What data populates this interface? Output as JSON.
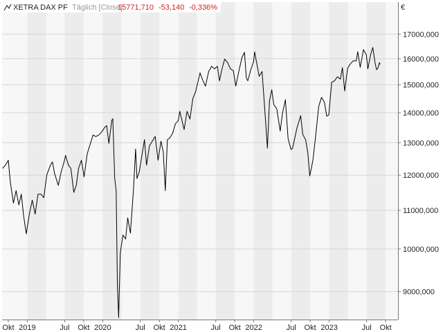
{
  "header": {
    "instrument": "XETRA DAX PF",
    "period": "Täglich [Close]",
    "last": "15771,710",
    "change": "-53,140",
    "change_pct": "-0,336%",
    "currency": "€"
  },
  "colors": {
    "line": "#000000",
    "negative": "#cc2222",
    "band_dark": "#ececec",
    "band_light": "#f7f7f7",
    "grid": "#d6d6d6",
    "axis": "#777777"
  },
  "chart_data": {
    "type": "line",
    "title": "",
    "xlabel": "",
    "ylabel": "",
    "y_scale": "log",
    "ylim": [
      8400,
      18400
    ],
    "xlim": [
      "2018-09-01",
      "2023-11-30"
    ],
    "grid": true,
    "legend": "none",
    "y_ticks": [
      {
        "value": 9000,
        "label": "9000,000"
      },
      {
        "value": 10000,
        "label": "10000,000"
      },
      {
        "value": 11000,
        "label": "11000,000"
      },
      {
        "value": 12000,
        "label": "12000,000"
      },
      {
        "value": 13000,
        "label": "13000,000"
      },
      {
        "value": 14000,
        "label": "14000,000"
      },
      {
        "value": 15000,
        "label": "15000,000"
      },
      {
        "value": 16000,
        "label": "16000,000"
      },
      {
        "value": 17000,
        "label": "17000,000"
      }
    ],
    "x_ticks": [
      {
        "date": "2018-10-01",
        "label": "Okt"
      },
      {
        "date": "2019-01-01",
        "label": "2019"
      },
      {
        "date": "2019-07-01",
        "label": "Jul"
      },
      {
        "date": "2019-10-01",
        "label": "Okt"
      },
      {
        "date": "2020-01-01",
        "label": "2020"
      },
      {
        "date": "2020-07-01",
        "label": "Jul"
      },
      {
        "date": "2020-10-01",
        "label": "Okt"
      },
      {
        "date": "2021-01-01",
        "label": "2021"
      },
      {
        "date": "2021-07-01",
        "label": "Jul"
      },
      {
        "date": "2021-10-01",
        "label": "Okt"
      },
      {
        "date": "2022-01-01",
        "label": "2022"
      },
      {
        "date": "2022-07-01",
        "label": "Jul"
      },
      {
        "date": "2022-10-01",
        "label": "Okt"
      },
      {
        "date": "2023-01-01",
        "label": "2023"
      },
      {
        "date": "2023-07-01",
        "label": "Jul"
      },
      {
        "date": "2023-10-01",
        "label": "Okt"
      }
    ],
    "series": [
      {
        "values": [
          [
            "2018-09-03",
            12200
          ],
          [
            "2018-09-17",
            12300
          ],
          [
            "2018-10-01",
            12450
          ],
          [
            "2018-10-11",
            11800
          ],
          [
            "2018-10-26",
            11200
          ],
          [
            "2018-11-08",
            11550
          ],
          [
            "2018-11-21",
            11150
          ],
          [
            "2018-12-03",
            11450
          ],
          [
            "2018-12-14",
            10870
          ],
          [
            "2018-12-27",
            10380
          ],
          [
            "2019-01-11",
            10900
          ],
          [
            "2019-01-25",
            11280
          ],
          [
            "2019-02-08",
            10900
          ],
          [
            "2019-02-22",
            11450
          ],
          [
            "2019-03-08",
            11450
          ],
          [
            "2019-03-22",
            11350
          ],
          [
            "2019-04-05",
            12000
          ],
          [
            "2019-04-23",
            12300
          ],
          [
            "2019-05-03",
            12400
          ],
          [
            "2019-05-13",
            12050
          ],
          [
            "2019-05-31",
            11700
          ],
          [
            "2019-06-14",
            12100
          ],
          [
            "2019-06-28",
            12400
          ],
          [
            "2019-07-05",
            12600
          ],
          [
            "2019-07-19",
            12300
          ],
          [
            "2019-07-31",
            12200
          ],
          [
            "2019-08-14",
            11500
          ],
          [
            "2019-08-26",
            11700
          ],
          [
            "2019-09-06",
            12200
          ],
          [
            "2019-09-20",
            12450
          ],
          [
            "2019-10-03",
            11950
          ],
          [
            "2019-10-18",
            12650
          ],
          [
            "2019-11-01",
            12950
          ],
          [
            "2019-11-15",
            13250
          ],
          [
            "2019-11-29",
            13200
          ],
          [
            "2019-12-13",
            13250
          ],
          [
            "2019-12-27",
            13350
          ],
          [
            "2020-01-10",
            13500
          ],
          [
            "2020-01-20",
            13560
          ],
          [
            "2020-01-31",
            12980
          ],
          [
            "2020-02-14",
            13740
          ],
          [
            "2020-02-19",
            13790
          ],
          [
            "2020-02-28",
            11900
          ],
          [
            "2020-03-06",
            11550
          ],
          [
            "2020-03-12",
            9160
          ],
          [
            "2020-03-18",
            8440
          ],
          [
            "2020-03-26",
            9900
          ],
          [
            "2020-04-08",
            10350
          ],
          [
            "2020-04-21",
            10250
          ],
          [
            "2020-05-01",
            10800
          ],
          [
            "2020-05-14",
            10400
          ],
          [
            "2020-05-29",
            11600
          ],
          [
            "2020-06-08",
            12800
          ],
          [
            "2020-06-15",
            11900
          ],
          [
            "2020-06-26",
            12100
          ],
          [
            "2020-07-10",
            12650
          ],
          [
            "2020-07-21",
            13100
          ],
          [
            "2020-07-31",
            12300
          ],
          [
            "2020-08-14",
            12900
          ],
          [
            "2020-08-28",
            13050
          ],
          [
            "2020-09-11",
            13200
          ],
          [
            "2020-09-25",
            12450
          ],
          [
            "2020-10-09",
            13050
          ],
          [
            "2020-10-20",
            12700
          ],
          [
            "2020-10-30",
            11550
          ],
          [
            "2020-11-09",
            13100
          ],
          [
            "2020-11-20",
            13150
          ],
          [
            "2020-12-04",
            13300
          ],
          [
            "2020-12-18",
            13630
          ],
          [
            "2020-12-31",
            13720
          ],
          [
            "2021-01-08",
            14050
          ],
          [
            "2021-01-29",
            13430
          ],
          [
            "2021-02-12",
            14050
          ],
          [
            "2021-02-26",
            13780
          ],
          [
            "2021-03-12",
            14500
          ],
          [
            "2021-03-26",
            14750
          ],
          [
            "2021-04-16",
            15450
          ],
          [
            "2021-04-30",
            15150
          ],
          [
            "2021-05-12",
            14950
          ],
          [
            "2021-05-28",
            15500
          ],
          [
            "2021-06-11",
            15700
          ],
          [
            "2021-06-25",
            15600
          ],
          [
            "2021-07-09",
            15700
          ],
          [
            "2021-07-19",
            15150
          ],
          [
            "2021-07-30",
            15550
          ],
          [
            "2021-08-13",
            15980
          ],
          [
            "2021-08-27",
            15850
          ],
          [
            "2021-09-10",
            15600
          ],
          [
            "2021-09-24",
            15530
          ],
          [
            "2021-10-06",
            14950
          ],
          [
            "2021-10-22",
            15550
          ],
          [
            "2021-11-05",
            16050
          ],
          [
            "2021-11-17",
            16250
          ],
          [
            "2021-11-26",
            15250
          ],
          [
            "2021-12-03",
            15150
          ],
          [
            "2021-12-17",
            15550
          ],
          [
            "2021-12-31",
            15880
          ],
          [
            "2022-01-05",
            16270
          ],
          [
            "2022-01-14",
            15880
          ],
          [
            "2022-01-27",
            15320
          ],
          [
            "2022-02-10",
            15500
          ],
          [
            "2022-02-24",
            14050
          ],
          [
            "2022-03-08",
            12830
          ],
          [
            "2022-03-18",
            14400
          ],
          [
            "2022-03-29",
            14820
          ],
          [
            "2022-04-08",
            14280
          ],
          [
            "2022-04-22",
            14140
          ],
          [
            "2022-05-09",
            13380
          ],
          [
            "2022-05-20",
            13980
          ],
          [
            "2022-06-03",
            14460
          ],
          [
            "2022-06-16",
            13130
          ],
          [
            "2022-06-30",
            12780
          ],
          [
            "2022-07-08",
            12830
          ],
          [
            "2022-07-29",
            13480
          ],
          [
            "2022-08-16",
            13900
          ],
          [
            "2022-08-26",
            13270
          ],
          [
            "2022-09-09",
            13090
          ],
          [
            "2022-09-20",
            12670
          ],
          [
            "2022-09-29",
            11975
          ],
          [
            "2022-10-14",
            12440
          ],
          [
            "2022-10-28",
            13250
          ],
          [
            "2022-11-11",
            14220
          ],
          [
            "2022-11-25",
            14540
          ],
          [
            "2022-12-09",
            14370
          ],
          [
            "2022-12-20",
            13880
          ],
          [
            "2022-12-30",
            13920
          ],
          [
            "2023-01-13",
            15090
          ],
          [
            "2023-01-27",
            15150
          ],
          [
            "2023-02-10",
            15300
          ],
          [
            "2023-02-24",
            15210
          ],
          [
            "2023-03-06",
            15650
          ],
          [
            "2023-03-17",
            14770
          ],
          [
            "2023-03-31",
            15630
          ],
          [
            "2023-04-14",
            15800
          ],
          [
            "2023-04-28",
            15920
          ],
          [
            "2023-05-12",
            15910
          ],
          [
            "2023-05-19",
            16280
          ],
          [
            "2023-05-31",
            15660
          ],
          [
            "2023-06-16",
            16360
          ],
          [
            "2023-06-30",
            16150
          ],
          [
            "2023-07-07",
            15600
          ],
          [
            "2023-07-21",
            16180
          ],
          [
            "2023-07-31",
            16450
          ],
          [
            "2023-08-11",
            15830
          ],
          [
            "2023-08-18",
            15570
          ],
          [
            "2023-08-25",
            15630
          ],
          [
            "2023-09-01",
            15840
          ],
          [
            "2023-09-05",
            15771.71
          ]
        ]
      }
    ]
  }
}
